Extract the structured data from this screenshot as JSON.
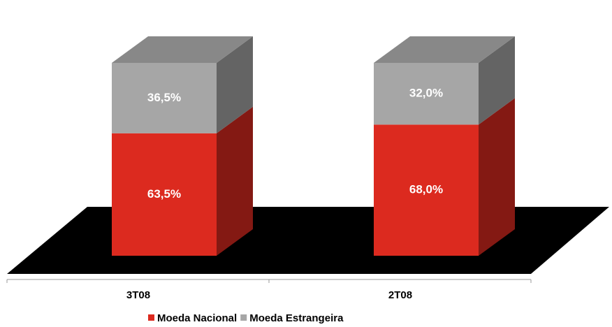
{
  "chart_data": {
    "type": "stacked-bar-3d",
    "categories": [
      "3T08",
      "2T08"
    ],
    "series": [
      {
        "name": "Moeda Nacional",
        "color": "#dc2a1f",
        "values": [
          63.5,
          68.0
        ],
        "value_labels": [
          "63,5%",
          "68,0%"
        ]
      },
      {
        "name": "Moeda Estrangeira",
        "color": "#a6a6a6",
        "values": [
          36.5,
          32.0
        ],
        "value_labels": [
          "36,5%",
          "32,0%"
        ]
      }
    ],
    "ylim": [
      0,
      100
    ]
  }
}
